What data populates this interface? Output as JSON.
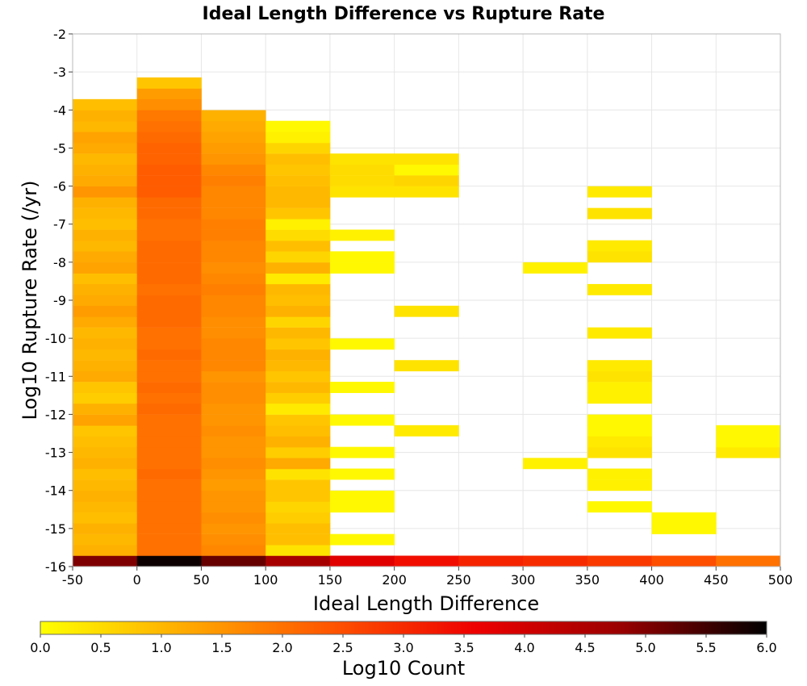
{
  "chart_data": {
    "type": "heatmap",
    "title": "Ideal Length Difference vs Rupture Rate",
    "xlabel": "Ideal Length Difference",
    "ylabel": "Log10 Rupture Rate (/yr)",
    "colorbar_label": "Log10 Count",
    "xlim": [
      -50,
      500
    ],
    "ylim": [
      -16,
      -2
    ],
    "x_ticks": [
      "-50",
      "0",
      "50",
      "100",
      "150",
      "200",
      "250",
      "300",
      "350",
      "400",
      "450",
      "500"
    ],
    "y_ticks": [
      "-2",
      "-3",
      "-4",
      "-5",
      "-6",
      "-7",
      "-8",
      "-9",
      "-10",
      "-11",
      "-12",
      "-13",
      "-14",
      "-15",
      "-16"
    ],
    "colorbar_ticks": [
      "0.0",
      "0.5",
      "1.0",
      "1.5",
      "2.0",
      "2.5",
      "3.0",
      "3.5",
      "4.0",
      "4.5",
      "5.0",
      "5.5",
      "6.0"
    ],
    "colorbar_range": [
      0,
      6
    ],
    "colormap": [
      "#ffff00",
      "#ffaa00",
      "#ff5500",
      "#ee0000",
      "#990000",
      "#000000"
    ],
    "bin_width_x": 50,
    "bin_height_y": 0.2857,
    "cells": [
      [
        -50,
        -16,
        5.0
      ],
      [
        0,
        -16,
        5.9
      ],
      [
        50,
        -16,
        5.2
      ],
      [
        100,
        -16,
        4.6
      ],
      [
        150,
        -16,
        3.8
      ],
      [
        200,
        -16,
        3.4
      ],
      [
        250,
        -16,
        3.1
      ],
      [
        300,
        -16,
        3.0
      ],
      [
        350,
        -16,
        2.8
      ],
      [
        400,
        -16,
        2.5
      ],
      [
        450,
        -16,
        2.0
      ],
      [
        -50,
        -15.71,
        1.1
      ],
      [
        -50,
        -15.43,
        1.0
      ],
      [
        -50,
        -15.14,
        1.1
      ],
      [
        -50,
        -14.86,
        0.9
      ],
      [
        -50,
        -14.57,
        1.0
      ],
      [
        -50,
        -14.29,
        1.1
      ],
      [
        -50,
        -14.0,
        1.0
      ],
      [
        -50,
        -13.71,
        0.9
      ],
      [
        -50,
        -13.43,
        1.1
      ],
      [
        -50,
        -13.14,
        1.0
      ],
      [
        -50,
        -12.86,
        0.9
      ],
      [
        -50,
        -12.57,
        0.8
      ],
      [
        -50,
        -12.29,
        1.3
      ],
      [
        -50,
        -12.0,
        1.1
      ],
      [
        -50,
        -11.71,
        0.7
      ],
      [
        -50,
        -11.43,
        0.8
      ],
      [
        -50,
        -11.14,
        1.2
      ],
      [
        -50,
        -10.86,
        1.1
      ],
      [
        -50,
        -10.57,
        1.0
      ],
      [
        -50,
        -10.29,
        1.1
      ],
      [
        -50,
        -10.0,
        1.0
      ],
      [
        -50,
        -9.71,
        1.2
      ],
      [
        -50,
        -9.43,
        1.4
      ],
      [
        -50,
        -9.14,
        1.2
      ],
      [
        -50,
        -8.86,
        1.1
      ],
      [
        -50,
        -8.57,
        0.9
      ],
      [
        -50,
        -8.29,
        1.3
      ],
      [
        -50,
        -8.0,
        1.2
      ],
      [
        -50,
        -7.71,
        1.0
      ],
      [
        -50,
        -7.43,
        1.1
      ],
      [
        -50,
        -7.14,
        0.9
      ],
      [
        -50,
        -6.86,
        1.0
      ],
      [
        -50,
        -6.57,
        1.1
      ],
      [
        -50,
        -6.29,
        1.5
      ],
      [
        -50,
        -6.0,
        1.2
      ],
      [
        -50,
        -5.71,
        1.1
      ],
      [
        -50,
        -5.43,
        1.0
      ],
      [
        -50,
        -5.14,
        1.2
      ],
      [
        -50,
        -4.86,
        1.3
      ],
      [
        -50,
        -4.57,
        1.0
      ],
      [
        -50,
        -4.29,
        1.1
      ],
      [
        -50,
        -4.0,
        0.9
      ],
      [
        0,
        -15.71,
        2.0
      ],
      [
        0,
        -15.43,
        2.0
      ],
      [
        0,
        -15.14,
        2.0
      ],
      [
        0,
        -14.86,
        2.0
      ],
      [
        0,
        -14.57,
        2.0
      ],
      [
        0,
        -14.29,
        2.0
      ],
      [
        0,
        -14.0,
        2.0
      ],
      [
        0,
        -13.71,
        2.1
      ],
      [
        0,
        -13.43,
        2.0
      ],
      [
        0,
        -13.14,
        2.0
      ],
      [
        0,
        -12.86,
        2.0
      ],
      [
        0,
        -12.57,
        2.0
      ],
      [
        0,
        -12.29,
        2.0
      ],
      [
        0,
        -12.0,
        2.1
      ],
      [
        0,
        -11.71,
        2.0
      ],
      [
        0,
        -11.43,
        2.1
      ],
      [
        0,
        -11.14,
        2.0
      ],
      [
        0,
        -10.86,
        2.0
      ],
      [
        0,
        -10.57,
        2.1
      ],
      [
        0,
        -10.29,
        2.0
      ],
      [
        0,
        -10.0,
        2.0
      ],
      [
        0,
        -9.71,
        2.1
      ],
      [
        0,
        -9.43,
        2.1
      ],
      [
        0,
        -9.14,
        2.1
      ],
      [
        0,
        -8.86,
        2.0
      ],
      [
        0,
        -8.57,
        2.1
      ],
      [
        0,
        -8.29,
        2.1
      ],
      [
        0,
        -8.0,
        2.1
      ],
      [
        0,
        -7.71,
        2.1
      ],
      [
        0,
        -7.43,
        2.0
      ],
      [
        0,
        -7.14,
        2.0
      ],
      [
        0,
        -6.86,
        2.1
      ],
      [
        0,
        -6.57,
        2.1
      ],
      [
        0,
        -6.29,
        2.3
      ],
      [
        0,
        -6.0,
        2.3
      ],
      [
        0,
        -5.71,
        2.3
      ],
      [
        0,
        -5.43,
        2.2
      ],
      [
        0,
        -5.14,
        2.2
      ],
      [
        0,
        -4.86,
        2.1
      ],
      [
        0,
        -4.57,
        2.0
      ],
      [
        0,
        -4.29,
        1.9
      ],
      [
        0,
        -4.0,
        1.6
      ],
      [
        0,
        -3.71,
        1.4
      ],
      [
        0,
        -3.43,
        0.8
      ],
      [
        50,
        -15.71,
        1.7
      ],
      [
        50,
        -15.43,
        1.6
      ],
      [
        50,
        -15.14,
        1.5
      ],
      [
        50,
        -14.86,
        1.6
      ],
      [
        50,
        -14.57,
        1.5
      ],
      [
        50,
        -14.29,
        1.5
      ],
      [
        50,
        -14.0,
        1.4
      ],
      [
        50,
        -13.71,
        1.5
      ],
      [
        50,
        -13.43,
        1.6
      ],
      [
        50,
        -13.14,
        1.5
      ],
      [
        50,
        -12.86,
        1.5
      ],
      [
        50,
        -12.57,
        1.6
      ],
      [
        50,
        -12.29,
        1.5
      ],
      [
        50,
        -12.0,
        1.5
      ],
      [
        50,
        -11.71,
        1.6
      ],
      [
        50,
        -11.43,
        1.6
      ],
      [
        50,
        -11.14,
        1.5
      ],
      [
        50,
        -10.86,
        1.7
      ],
      [
        50,
        -10.57,
        1.7
      ],
      [
        50,
        -10.29,
        1.7
      ],
      [
        50,
        -10.0,
        1.6
      ],
      [
        50,
        -9.71,
        1.6
      ],
      [
        50,
        -9.43,
        1.7
      ],
      [
        50,
        -9.14,
        1.7
      ],
      [
        50,
        -8.86,
        1.8
      ],
      [
        50,
        -8.57,
        1.7
      ],
      [
        50,
        -8.29,
        1.6
      ],
      [
        50,
        -8.0,
        1.7
      ],
      [
        50,
        -7.71,
        1.7
      ],
      [
        50,
        -7.43,
        1.8
      ],
      [
        50,
        -7.14,
        1.8
      ],
      [
        50,
        -6.86,
        1.7
      ],
      [
        50,
        -6.57,
        1.7
      ],
      [
        50,
        -6.29,
        1.7
      ],
      [
        50,
        -6.0,
        1.8
      ],
      [
        50,
        -5.71,
        1.7
      ],
      [
        50,
        -5.43,
        1.5
      ],
      [
        50,
        -5.14,
        1.4
      ],
      [
        50,
        -4.86,
        1.3
      ],
      [
        50,
        -4.57,
        1.2
      ],
      [
        50,
        -4.29,
        1.1
      ],
      [
        100,
        -15.71,
        0.4
      ],
      [
        100,
        -15.43,
        0.9
      ],
      [
        100,
        -15.14,
        0.9
      ],
      [
        100,
        -14.86,
        0.7
      ],
      [
        100,
        -14.57,
        0.6
      ],
      [
        100,
        -14.29,
        0.8
      ],
      [
        100,
        -14.0,
        0.8
      ],
      [
        100,
        -13.71,
        0.4
      ],
      [
        100,
        -13.43,
        1.2
      ],
      [
        100,
        -13.14,
        0.7
      ],
      [
        100,
        -12.86,
        1.1
      ],
      [
        100,
        -12.57,
        0.9
      ],
      [
        100,
        -12.29,
        0.8
      ],
      [
        100,
        -12.0,
        0.3
      ],
      [
        100,
        -11.71,
        0.7
      ],
      [
        100,
        -11.43,
        1.0
      ],
      [
        100,
        -11.14,
        0.8
      ],
      [
        100,
        -10.86,
        1.0
      ],
      [
        100,
        -10.57,
        1.1
      ],
      [
        100,
        -10.29,
        0.8
      ],
      [
        100,
        -10.0,
        1.0
      ],
      [
        100,
        -9.71,
        0.6
      ],
      [
        100,
        -9.43,
        1.1
      ],
      [
        100,
        -9.14,
        0.9
      ],
      [
        100,
        -8.86,
        1.0
      ],
      [
        100,
        -8.57,
        0.3
      ],
      [
        100,
        -8.29,
        1.1
      ],
      [
        100,
        -8.0,
        0.6
      ],
      [
        100,
        -7.71,
        0.9
      ],
      [
        100,
        -7.43,
        0.5
      ],
      [
        100,
        -7.14,
        0.2
      ],
      [
        100,
        -6.86,
        0.8
      ],
      [
        100,
        -6.57,
        1.0
      ],
      [
        100,
        -6.29,
        1.0
      ],
      [
        100,
        -6.0,
        0.9
      ],
      [
        100,
        -5.71,
        0.8
      ],
      [
        100,
        -5.43,
        0.9
      ],
      [
        100,
        -5.14,
        0.6
      ],
      [
        100,
        -4.86,
        0.2
      ],
      [
        100,
        -4.57,
        0.1
      ],
      [
        150,
        -15.43,
        0.1
      ],
      [
        150,
        -14.57,
        0.1
      ],
      [
        150,
        -14.29,
        0.1
      ],
      [
        150,
        -13.71,
        0.1
      ],
      [
        150,
        -13.14,
        0.1
      ],
      [
        150,
        -12.29,
        0.1
      ],
      [
        150,
        -11.43,
        0.1
      ],
      [
        150,
        -10.29,
        0.1
      ],
      [
        150,
        -8.29,
        0.1
      ],
      [
        150,
        -8.0,
        0.1
      ],
      [
        150,
        -7.43,
        0.2
      ],
      [
        150,
        -6.29,
        0.4
      ],
      [
        150,
        -6.0,
        0.5
      ],
      [
        150,
        -5.71,
        0.5
      ],
      [
        150,
        -5.43,
        0.4
      ],
      [
        200,
        -12.57,
        0.3
      ],
      [
        200,
        -10.86,
        0.4
      ],
      [
        200,
        -9.43,
        0.4
      ],
      [
        200,
        -6.29,
        0.4
      ],
      [
        200,
        -6.0,
        0.6
      ],
      [
        200,
        -5.71,
        0.1
      ],
      [
        200,
        -5.43,
        0.4
      ],
      [
        300,
        -13.43,
        0.2
      ],
      [
        300,
        -8.29,
        0.2
      ],
      [
        350,
        -14.57,
        0.1
      ],
      [
        350,
        -14.0,
        0.2
      ],
      [
        350,
        -13.71,
        0.2
      ],
      [
        350,
        -13.14,
        0.4
      ],
      [
        350,
        -12.86,
        0.3
      ],
      [
        350,
        -12.57,
        0.1
      ],
      [
        350,
        -12.29,
        0.1
      ],
      [
        350,
        -11.71,
        0.2
      ],
      [
        350,
        -11.43,
        0.2
      ],
      [
        350,
        -11.14,
        0.4
      ],
      [
        350,
        -10.86,
        0.3
      ],
      [
        350,
        -10.0,
        0.3
      ],
      [
        350,
        -8.86,
        0.3
      ],
      [
        350,
        -8.0,
        0.4
      ],
      [
        350,
        -7.71,
        0.3
      ],
      [
        350,
        -6.86,
        0.4
      ],
      [
        350,
        -6.29,
        0.3
      ],
      [
        400,
        -15.14,
        0.1
      ],
      [
        400,
        -14.86,
        0.1
      ],
      [
        450,
        -13.14,
        0.3
      ],
      [
        450,
        -12.86,
        0.1
      ],
      [
        450,
        -12.57,
        0.1
      ]
    ]
  }
}
